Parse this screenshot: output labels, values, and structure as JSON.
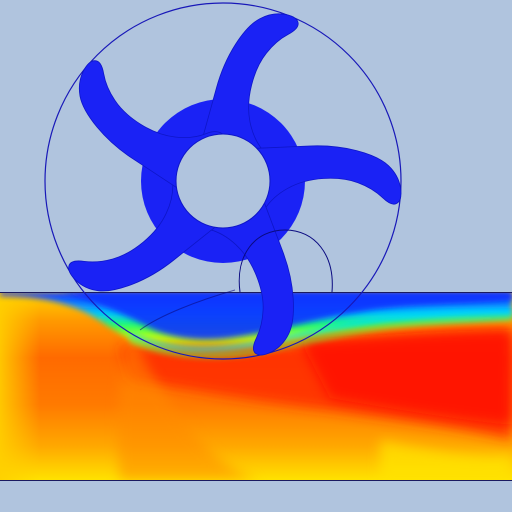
{
  "colors": {
    "background": "#b0c4de",
    "rotor_fill": "#1a22f5",
    "outline": "#1010c0",
    "field_low": "#1020ff",
    "field_mid": "#20ff40",
    "field_high": "#ff1010",
    "field_edge": "#ffe600"
  },
  "scene": {
    "model": "rotor",
    "blade_count": 5,
    "field_colormap": "rainbow"
  }
}
